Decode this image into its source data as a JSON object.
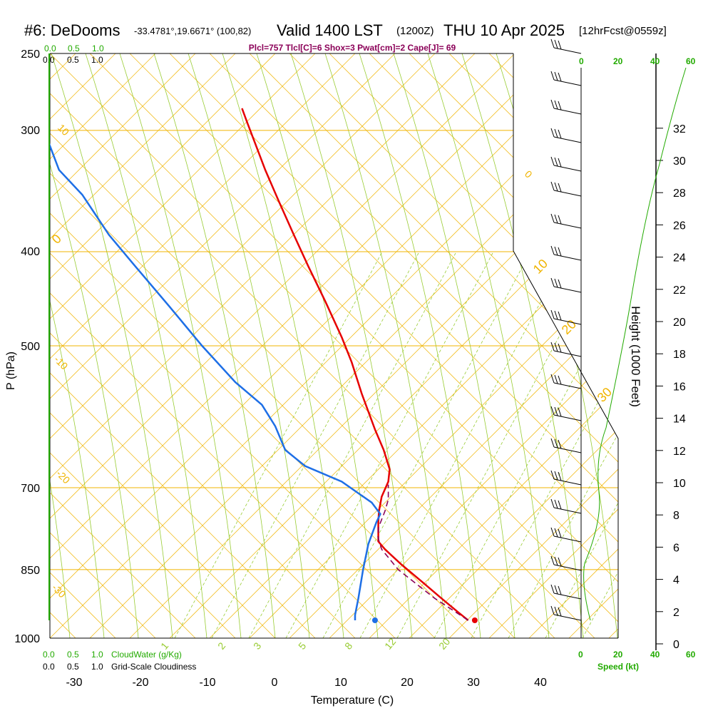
{
  "header": {
    "station": "#6: DeDooms",
    "coords": "-33.4781°,19.6671° (100,82)",
    "valid": "Valid 1400 LST",
    "zulu": "(1200Z)",
    "date": "THU 10 Apr 2025",
    "forecast": "[12hrFcst@0559z]"
  },
  "params": "Plcl=757 Tlcl[C]=6 Shox=3 Pwat[cm]=2 Cape[J]= 69",
  "colors": {
    "temp": "#e60000",
    "dewpoint": "#1e6fe6",
    "parcel": "#8b0058",
    "isobar": "#f0b400",
    "dry_adiabat": "#f0b400",
    "moist_adiabat": "#99cc33",
    "mixing_ratio": "#99cc33",
    "green_text": "#22aa00"
  },
  "chart_data": {
    "type": "line",
    "title": "",
    "xlabel": "Temperature (C)",
    "ylabel": "P (hPa)",
    "y2label": "Height (1000 Feet)",
    "xlim": [
      -35,
      50
    ],
    "ylim": [
      1000,
      250
    ],
    "x_ticks": [
      -30,
      -20,
      -10,
      0,
      10,
      20,
      30,
      40
    ],
    "y_ticks": [
      250,
      300,
      400,
      500,
      700,
      850,
      1000
    ],
    "height_ticks": [
      0,
      2,
      4,
      6,
      8,
      10,
      12,
      14,
      16,
      18,
      20,
      22,
      24,
      26,
      28,
      30,
      32
    ],
    "series": [
      {
        "key": "temperature",
        "points": [
          [
            29.0,
            940
          ],
          [
            27.5,
            925
          ],
          [
            25.0,
            900
          ],
          [
            22.0,
            870
          ],
          [
            19.0,
            840
          ],
          [
            16.5,
            810
          ],
          [
            15.5,
            795
          ],
          [
            15.5,
            785
          ],
          [
            15.5,
            760
          ],
          [
            15.6,
            740
          ],
          [
            16.0,
            715
          ],
          [
            17.0,
            690
          ],
          [
            17.2,
            670
          ],
          [
            16.3,
            640
          ],
          [
            15.0,
            610
          ],
          [
            13.0,
            560
          ],
          [
            11.5,
            520
          ],
          [
            10.0,
            490
          ],
          [
            7.5,
            450
          ],
          [
            5.0,
            415
          ],
          [
            2.8,
            385
          ],
          [
            0.5,
            355
          ],
          [
            -1.5,
            330
          ],
          [
            -3.0,
            310
          ],
          [
            -4.2,
            295
          ],
          [
            -5.0,
            285
          ]
        ]
      },
      {
        "key": "dewpoint",
        "points": [
          [
            12.0,
            940
          ],
          [
            12.0,
            930
          ],
          [
            12.5,
            900
          ],
          [
            13.2,
            850
          ],
          [
            14.0,
            800
          ],
          [
            15.2,
            760
          ],
          [
            15.8,
            745
          ],
          [
            14.5,
            725
          ],
          [
            10.0,
            690
          ],
          [
            4.5,
            665
          ],
          [
            1.5,
            640
          ],
          [
            0.0,
            605
          ],
          [
            -2.0,
            575
          ],
          [
            -6.0,
            545
          ],
          [
            -11.0,
            500
          ],
          [
            -16.0,
            455
          ],
          [
            -21.0,
            415
          ],
          [
            -25.0,
            385
          ],
          [
            -29.0,
            350
          ],
          [
            -32.5,
            330
          ],
          [
            -34.0,
            310
          ],
          [
            -35.0,
            290
          ],
          [
            -36.0,
            270
          ],
          [
            -37.0,
            260
          ]
        ]
      },
      {
        "key": "parcel",
        "points": [
          [
            29.0,
            940
          ],
          [
            24.0,
            900
          ],
          [
            18.5,
            850
          ],
          [
            16.0,
            810
          ],
          [
            15.5,
            790
          ],
          [
            15.5,
            770
          ],
          [
            16.5,
            740
          ],
          [
            17.0,
            720
          ],
          [
            17.0,
            695
          ]
        ]
      }
    ],
    "surface_points": [
      {
        "key": "surface_temp",
        "x": 30,
        "y": 940
      },
      {
        "key": "surface_dew",
        "x": 15,
        "y": 940
      }
    ],
    "mixing_ratio_labels": [
      "1",
      "2",
      "3",
      "5",
      "8",
      "12",
      "20"
    ],
    "dry_adiabat_labels": [
      "10",
      "0",
      "-10",
      "-20",
      "-30"
    ],
    "moist_adiabat_labels": [
      "0",
      "10",
      "20",
      "30"
    ]
  },
  "panels": {
    "wind_speed_ticks": [
      "0",
      "20",
      "40",
      "60"
    ],
    "cloud_ticks": [
      "0.0",
      "0.5",
      "1.0"
    ],
    "cloudwater_label": "CloudWater (g/Kg)",
    "cloudiness_label": "Grid-Scale Cloudiness",
    "speed_label": "Speed (kt)"
  }
}
